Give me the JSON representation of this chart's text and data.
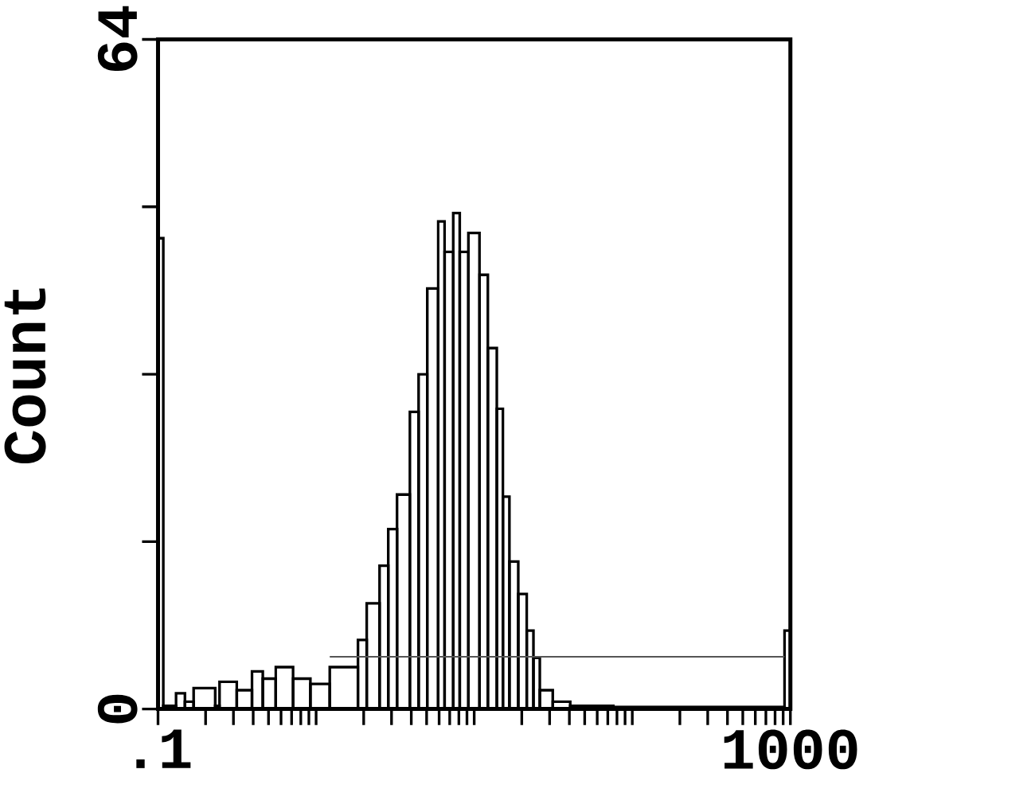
{
  "chart_data": {
    "type": "histogram",
    "ylabel": "Count",
    "log": "x",
    "xlim": [
      0.1,
      1000
    ],
    "ylim": [
      0,
      64
    ],
    "xticks": [
      {
        "value": 0.1,
        "label": ".1"
      },
      {
        "value": 0.2,
        "label": null
      },
      {
        "value": 0.3,
        "label": null
      },
      {
        "value": 0.4,
        "label": null
      },
      {
        "value": 0.5,
        "label": null
      },
      {
        "value": 0.6,
        "label": null
      },
      {
        "value": 0.7,
        "label": null
      },
      {
        "value": 0.8,
        "label": null
      },
      {
        "value": 0.9,
        "label": null
      },
      {
        "value": 1,
        "label": null
      },
      {
        "value": 2,
        "label": null
      },
      {
        "value": 3,
        "label": null
      },
      {
        "value": 4,
        "label": null
      },
      {
        "value": 5,
        "label": null
      },
      {
        "value": 6,
        "label": null
      },
      {
        "value": 7,
        "label": null
      },
      {
        "value": 8,
        "label": null
      },
      {
        "value": 9,
        "label": null
      },
      {
        "value": 10,
        "label": null
      },
      {
        "value": 20,
        "label": null
      },
      {
        "value": 30,
        "label": null
      },
      {
        "value": 40,
        "label": null
      },
      {
        "value": 50,
        "label": null
      },
      {
        "value": 60,
        "label": null
      },
      {
        "value": 70,
        "label": null
      },
      {
        "value": 80,
        "label": null
      },
      {
        "value": 90,
        "label": null
      },
      {
        "value": 100,
        "label": null
      },
      {
        "value": 200,
        "label": null
      },
      {
        "value": 300,
        "label": null
      },
      {
        "value": 400,
        "label": null
      },
      {
        "value": 500,
        "label": null
      },
      {
        "value": 600,
        "label": null
      },
      {
        "value": 700,
        "label": null
      },
      {
        "value": 800,
        "label": null
      },
      {
        "value": 900,
        "label": null
      },
      1000
    ],
    "yticks": [
      0,
      {
        "value": 16,
        "label": null
      },
      {
        "value": 32,
        "label": null
      },
      {
        "value": 48,
        "label": null
      },
      64
    ],
    "series": [
      {
        "color": "#000000",
        "bins": [
          0.1,
          0.108,
          0.13,
          0.148,
          0.168,
          0.23,
          0.245,
          0.315,
          0.393,
          0.46,
          0.555,
          0.715,
          0.92,
          1.22,
          1.84,
          2.09,
          2.52,
          2.86,
          3.25,
          3.92,
          4.45,
          5.05,
          5.91,
          6.5,
          7.37,
          8.1,
          9.19,
          10.8,
          12.2,
          13.9,
          15.2,
          16.7,
          19,
          21.5,
          23.7,
          26,
          31.4,
          40.5,
          76,
          918,
          1000
        ],
        "values": [
          45,
          0.3,
          1.5,
          0.7,
          2,
          0.3,
          2.6,
          1.8,
          3.6,
          2.9,
          4,
          2.9,
          2.4,
          4,
          6.6,
          10.1,
          13.7,
          17.2,
          20.5,
          28.4,
          32,
          40.2,
          46.6,
          43.7,
          47.4,
          43.7,
          45.5,
          41.5,
          34.5,
          28.7,
          20.3,
          14.1,
          11,
          7.5,
          4.9,
          1.8,
          0.7,
          0.3,
          0.2,
          7.5
        ]
      },
      {
        "type": "line",
        "color": "#555555",
        "x": [
          1.22,
          918
        ],
        "values": [
          5,
          5
        ]
      }
    ]
  }
}
